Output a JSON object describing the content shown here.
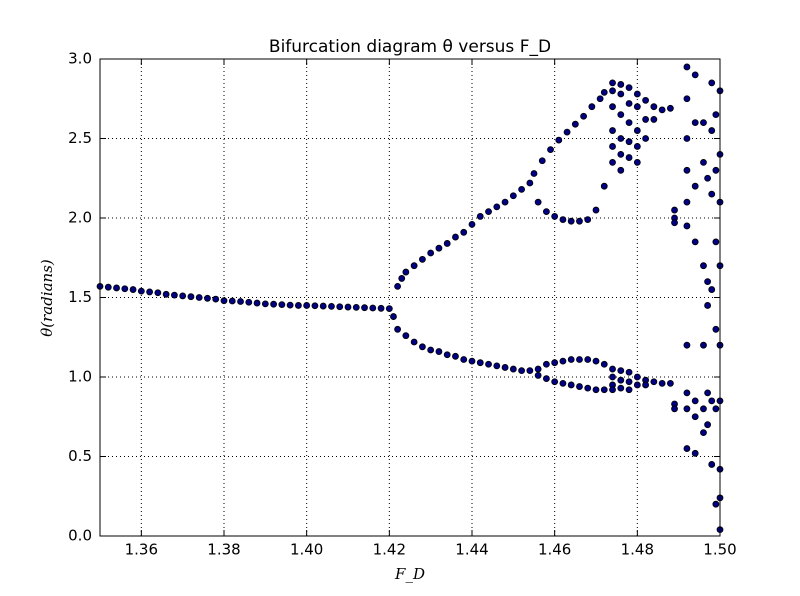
{
  "chart_data": {
    "type": "scatter",
    "title": "Bifurcation diagram  θ versus F_D",
    "x_label": "F_D",
    "y_label": "θ(radians)",
    "color": "#000080",
    "grid": true,
    "xlim": [
      1.35,
      1.5
    ],
    "ylim": [
      0,
      3
    ],
    "xticks": [
      1.36,
      1.38,
      {
        "value": 1.4,
        "label": "1.40"
      },
      1.42,
      1.44,
      1.46,
      1.48,
      {
        "value": 1.5,
        "label": "1.50"
      }
    ],
    "yticks": [
      {
        "value": 0,
        "label": "0.0"
      },
      0.5,
      {
        "value": 1,
        "label": "1.0"
      },
      1.5,
      {
        "value": 2,
        "label": "2.0"
      },
      2.5,
      {
        "value": 3,
        "label": "3.0"
      }
    ],
    "x": [
      1.35,
      1.352,
      1.354,
      1.356,
      1.358,
      1.36,
      1.362,
      1.364,
      1.366,
      1.368,
      1.37,
      1.372,
      1.374,
      1.376,
      1.378,
      1.38,
      1.382,
      1.384,
      1.386,
      1.388,
      1.39,
      1.392,
      1.394,
      1.396,
      1.398,
      1.4,
      1.402,
      1.404,
      1.406,
      1.408,
      1.41,
      1.412,
      1.414,
      1.416,
      1.418,
      1.42,
      1.422,
      1.423,
      1.424,
      1.426,
      1.428,
      1.43,
      1.432,
      1.434,
      1.436,
      1.438,
      1.44,
      1.442,
      1.444,
      1.446,
      1.448,
      1.45,
      1.452,
      1.454,
      1.455,
      1.457,
      1.459,
      1.461,
      1.463,
      1.465,
      1.467,
      1.469,
      1.471,
      1.472,
      1.456,
      1.458,
      1.46,
      1.462,
      1.464,
      1.466,
      1.468,
      1.47,
      1.472,
      1.421,
      1.422,
      1.424,
      1.426,
      1.428,
      1.43,
      1.432,
      1.434,
      1.436,
      1.438,
      1.44,
      1.442,
      1.444,
      1.446,
      1.448,
      1.45,
      1.452,
      1.454,
      1.456,
      1.458,
      1.46,
      1.462,
      1.464,
      1.466,
      1.468,
      1.47,
      1.472,
      1.456,
      1.458,
      1.46,
      1.462,
      1.464,
      1.466,
      1.468,
      1.47,
      1.472,
      1.474,
      1.474,
      1.474,
      1.474,
      1.474,
      1.474,
      1.474,
      1.474,
      1.474,
      1.474,
      1.476,
      1.476,
      1.476,
      1.476,
      1.476,
      1.476,
      1.476,
      1.476,
      1.476,
      1.478,
      1.478,
      1.478,
      1.478,
      1.478,
      1.478,
      1.478,
      1.478,
      1.48,
      1.48,
      1.48,
      1.48,
      1.48,
      1.48,
      1.48,
      1.482,
      1.482,
      1.482,
      1.482,
      1.482,
      1.484,
      1.484,
      1.484,
      1.486,
      1.486,
      1.488,
      1.488,
      1.489,
      1.489,
      1.489,
      1.489,
      1.489,
      1.492,
      1.492,
      1.492,
      1.492,
      1.492,
      1.492,
      1.492,
      1.492,
      1.492,
      1.492,
      1.494,
      1.494,
      1.494,
      1.494,
      1.494,
      1.494,
      1.494,
      1.496,
      1.496,
      1.496,
      1.496,
      1.496,
      1.496,
      1.497,
      1.497,
      1.497,
      1.497,
      1.497,
      1.498,
      1.498,
      1.498,
      1.498,
      1.498,
      1.498,
      1.499,
      1.499,
      1.499,
      1.499,
      1.499,
      1.499,
      1.5,
      1.5,
      1.5,
      1.5,
      1.5,
      1.5,
      1.5,
      1.5,
      1.5
    ],
    "values": [
      1.57,
      1.565,
      1.56,
      1.555,
      1.55,
      1.54,
      1.535,
      1.53,
      1.52,
      1.515,
      1.51,
      1.505,
      1.5,
      1.495,
      1.49,
      1.48,
      1.478,
      1.475,
      1.47,
      1.465,
      1.46,
      1.458,
      1.455,
      1.452,
      1.45,
      1.45,
      1.448,
      1.446,
      1.444,
      1.442,
      1.44,
      1.438,
      1.436,
      1.434,
      1.432,
      1.43,
      1.57,
      1.62,
      1.66,
      1.7,
      1.74,
      1.78,
      1.81,
      1.84,
      1.88,
      1.91,
      1.96,
      2.01,
      2.04,
      2.07,
      2.1,
      2.14,
      2.18,
      2.22,
      2.28,
      2.36,
      2.43,
      2.49,
      2.54,
      2.59,
      2.64,
      2.7,
      2.75,
      2.79,
      2.1,
      2.04,
      2.01,
      1.99,
      1.98,
      1.98,
      1.99,
      2.05,
      2.2,
      1.38,
      1.3,
      1.26,
      1.22,
      1.19,
      1.17,
      1.16,
      1.14,
      1.13,
      1.11,
      1.1,
      1.09,
      1.08,
      1.07,
      1.06,
      1.05,
      1.04,
      1.04,
      1.05,
      1.08,
      1.09,
      1.1,
      1.11,
      1.11,
      1.11,
      1.1,
      1.08,
      1.01,
      0.99,
      0.97,
      0.96,
      0.95,
      0.94,
      0.93,
      0.92,
      0.92,
      2.85,
      2.8,
      2.7,
      2.55,
      2.45,
      2.35,
      1.05,
      1.0,
      0.95,
      0.92,
      2.84,
      2.78,
      2.65,
      2.5,
      2.4,
      2.3,
      1.04,
      0.98,
      0.93,
      2.82,
      2.72,
      2.6,
      2.48,
      2.38,
      1.03,
      0.97,
      0.92,
      2.78,
      2.7,
      2.55,
      2.45,
      2.35,
      1.0,
      0.95,
      2.74,
      2.62,
      2.5,
      0.98,
      0.95,
      2.7,
      2.62,
      0.97,
      2.68,
      0.96,
      2.69,
      0.96,
      2.05,
      2.0,
      1.97,
      0.83,
      0.8,
      2.95,
      2.75,
      2.5,
      2.3,
      2.1,
      1.95,
      1.2,
      0.9,
      0.8,
      0.55,
      2.9,
      2.6,
      2.2,
      1.85,
      0.85,
      0.75,
      0.52,
      2.6,
      2.35,
      1.7,
      1.2,
      0.8,
      0.65,
      2.25,
      1.6,
      1.45,
      0.9,
      0.7,
      2.85,
      2.55,
      2.15,
      1.55,
      0.85,
      0.45,
      2.65,
      2.3,
      1.85,
      1.3,
      0.8,
      0.2,
      2.8,
      2.4,
      2.1,
      1.7,
      1.2,
      0.85,
      0.42,
      0.24,
      0.04
    ]
  }
}
